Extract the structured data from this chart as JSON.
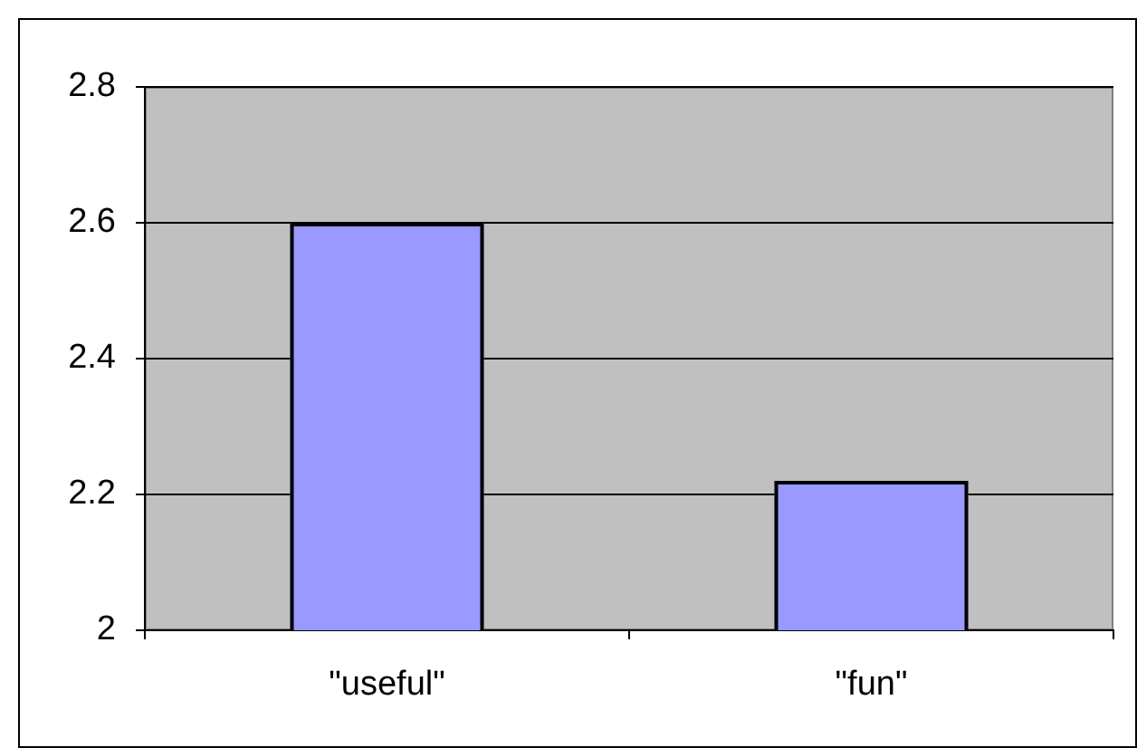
{
  "chart_data": {
    "type": "bar",
    "categories": [
      "\"useful\"",
      "\"fun\""
    ],
    "values": [
      2.6,
      2.22
    ],
    "color": "#9999ff",
    "ylim": [
      2,
      2.8
    ],
    "yticks": [
      2,
      2.2,
      2.4,
      2.6,
      2.8
    ],
    "grid": "y"
  }
}
